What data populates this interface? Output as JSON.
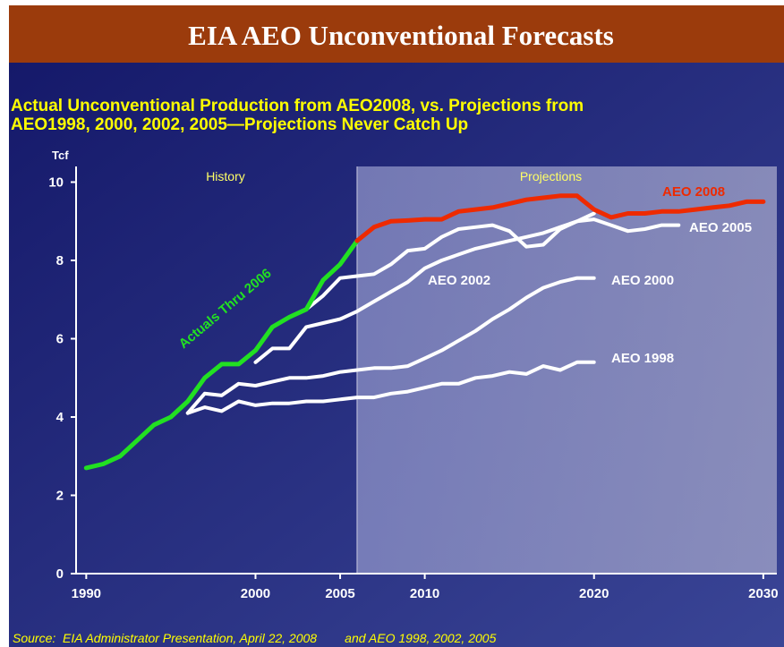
{
  "title": "EIA AEO Unconventional Forecasts",
  "chart_data": {
    "type": "line",
    "title": [
      "Actual Unconventional Production from AEO2008, vs. Projections from",
      "AEO1998, 2000, 2002, 2005—Projections Never Catch Up"
    ],
    "y_axis_label": "Tcf",
    "regions": [
      "History",
      "Projections"
    ],
    "source": "Source:  EIA Administrator Presentation, April 22, 2008        and AEO 1998, 2002, 2005",
    "xlim": [
      1989.4,
      2030.8
    ],
    "ylim": [
      0,
      10.4
    ],
    "xticks": [
      1990,
      2000,
      2005,
      2010,
      2020,
      2030
    ],
    "yticks": [
      0,
      2,
      4,
      6,
      8,
      10
    ],
    "x": [
      1990,
      1991,
      1992,
      1993,
      1994,
      1995,
      1996,
      1997,
      1998,
      1999,
      2000,
      2001,
      2002,
      2003,
      2004,
      2005,
      2006,
      2007,
      2008,
      2009,
      2010,
      2011,
      2012,
      2013,
      2014,
      2015,
      2016,
      2017,
      2018,
      2019,
      2020,
      2021,
      2022,
      2023,
      2024,
      2025,
      2026,
      2027,
      2028,
      2029,
      2030
    ],
    "series": [
      {
        "name": "AEO 1998",
        "color": "#ffffff",
        "values": [
          null,
          null,
          null,
          null,
          null,
          null,
          4.1,
          4.25,
          4.15,
          4.4,
          4.3,
          4.35,
          4.35,
          4.4,
          4.4,
          4.45,
          4.5,
          4.5,
          4.6,
          4.65,
          4.75,
          4.85,
          4.85,
          5.0,
          5.05,
          5.15,
          5.1,
          5.3,
          5.2,
          5.4,
          5.4,
          null,
          null,
          null,
          null,
          null,
          null,
          null,
          null,
          null,
          null
        ]
      },
      {
        "name": "AEO 2000",
        "color": "#ffffff",
        "values": [
          null,
          null,
          null,
          null,
          null,
          null,
          4.1,
          4.6,
          4.55,
          4.85,
          4.8,
          4.9,
          5.0,
          5.0,
          5.05,
          5.15,
          5.2,
          5.25,
          5.25,
          5.3,
          5.5,
          5.7,
          5.95,
          6.2,
          6.5,
          6.75,
          7.05,
          7.3,
          7.45,
          7.55,
          7.55,
          null,
          null,
          null,
          null,
          null,
          null,
          null,
          null,
          null,
          null
        ]
      },
      {
        "name": "AEO 2002",
        "color": "#ffffff",
        "values": [
          null,
          null,
          null,
          null,
          null,
          null,
          null,
          null,
          null,
          null,
          5.4,
          5.75,
          5.75,
          6.3,
          6.4,
          6.5,
          6.7,
          6.95,
          7.2,
          7.45,
          7.8,
          8.0,
          8.15,
          8.3,
          8.4,
          8.5,
          8.6,
          8.7,
          8.85,
          9.0,
          9.2,
          null,
          null,
          null,
          null,
          null,
          null,
          null,
          null,
          null,
          null
        ]
      },
      {
        "name": "AEO 2005",
        "color": "#ffffff",
        "values": [
          null,
          null,
          null,
          null,
          null,
          null,
          null,
          null,
          null,
          null,
          null,
          null,
          null,
          6.75,
          7.1,
          7.55,
          7.6,
          7.65,
          7.9,
          8.25,
          8.3,
          8.6,
          8.8,
          8.85,
          8.9,
          8.75,
          8.35,
          8.4,
          8.8,
          9.0,
          9.05,
          8.9,
          8.75,
          8.8,
          8.9,
          8.9,
          null,
          null,
          null,
          null,
          null
        ]
      },
      {
        "name": "Actuals Thru 2006",
        "color": "#22e022",
        "values": [
          2.7,
          2.8,
          3.0,
          3.4,
          3.8,
          4.0,
          4.4,
          5.0,
          5.35,
          5.35,
          5.7,
          6.3,
          6.55,
          6.75,
          7.5,
          7.9,
          8.5,
          null,
          null,
          null,
          null,
          null,
          null,
          null,
          null,
          null,
          null,
          null,
          null,
          null,
          null,
          null,
          null,
          null,
          null,
          null,
          null,
          null,
          null,
          null,
          null
        ]
      },
      {
        "name": "AEO 2008",
        "color": "#ee2a00",
        "values": [
          null,
          null,
          null,
          null,
          null,
          null,
          null,
          null,
          null,
          null,
          null,
          null,
          null,
          null,
          null,
          null,
          8.5,
          8.85,
          9.0,
          9.02,
          9.05,
          9.05,
          9.25,
          9.3,
          9.35,
          9.45,
          9.55,
          9.6,
          9.65,
          9.65,
          9.3,
          9.1,
          9.2,
          9.2,
          9.25,
          9.25,
          9.3,
          9.35,
          9.4,
          9.5,
          9.5
        ]
      }
    ]
  }
}
